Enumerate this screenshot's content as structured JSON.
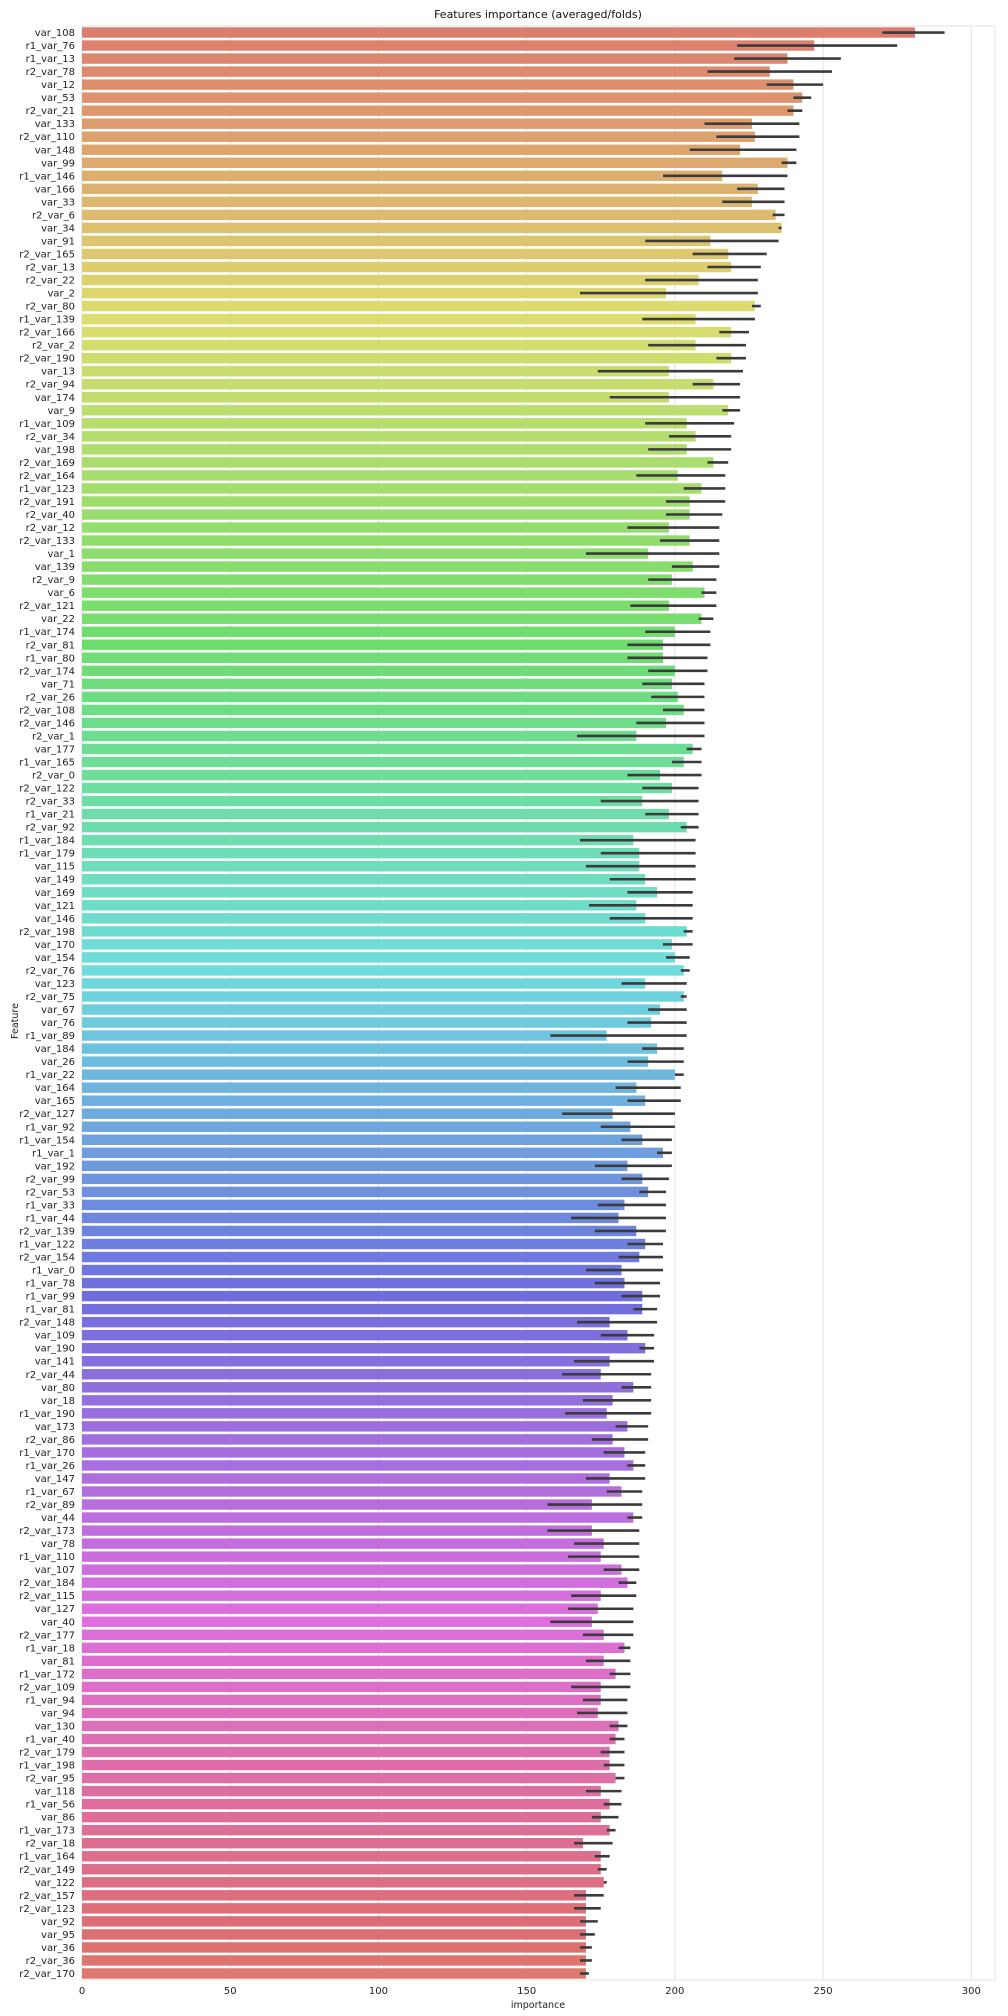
{
  "chart_data": {
    "type": "bar",
    "orientation": "horizontal",
    "title": "Features importance (averaged/folds)",
    "xlabel": "importance",
    "ylabel": "Feature",
    "xlim": [
      0,
      308
    ],
    "xticks": [
      0,
      50,
      100,
      150,
      200,
      250,
      300
    ],
    "grid": "vertical",
    "legend": "none",
    "categories": [
      "var_108",
      "r1_var_76",
      "r1_var_13",
      "r2_var_78",
      "var_12",
      "var_53",
      "r2_var_21",
      "var_133",
      "r2_var_110",
      "var_148",
      "var_99",
      "r1_var_146",
      "var_166",
      "var_33",
      "r2_var_6",
      "var_34",
      "var_91",
      "r2_var_165",
      "r2_var_13",
      "r2_var_22",
      "var_2",
      "r2_var_80",
      "r1_var_139",
      "r2_var_166",
      "r2_var_2",
      "r2_var_190",
      "var_13",
      "r2_var_94",
      "var_174",
      "var_9",
      "r1_var_109",
      "r2_var_34",
      "var_198",
      "r2_var_169",
      "r2_var_164",
      "r1_var_123",
      "r2_var_191",
      "r2_var_40",
      "r2_var_12",
      "r2_var_133",
      "var_1",
      "var_139",
      "r2_var_9",
      "var_6",
      "r2_var_121",
      "var_22",
      "r1_var_174",
      "r2_var_81",
      "r1_var_80",
      "r2_var_174",
      "var_71",
      "r2_var_26",
      "r2_var_108",
      "r2_var_146",
      "r2_var_1",
      "var_177",
      "r1_var_165",
      "r2_var_0",
      "r2_var_122",
      "r2_var_33",
      "r1_var_21",
      "r2_var_92",
      "r1_var_184",
      "r1_var_179",
      "var_115",
      "var_149",
      "var_169",
      "var_121",
      "var_146",
      "r2_var_198",
      "var_170",
      "var_154",
      "r2_var_76",
      "var_123",
      "r2_var_75",
      "var_67",
      "var_76",
      "r1_var_89",
      "var_184",
      "var_26",
      "r1_var_22",
      "var_164",
      "var_165",
      "r2_var_127",
      "r1_var_92",
      "r1_var_154",
      "r1_var_1",
      "var_192",
      "r2_var_99",
      "r2_var_53",
      "r1_var_33",
      "r1_var_44",
      "r2_var_139",
      "r1_var_122",
      "r2_var_154",
      "r1_var_0",
      "r1_var_78",
      "r1_var_99",
      "r1_var_81",
      "r2_var_148",
      "var_109",
      "var_190",
      "var_141",
      "r2_var_44",
      "var_80",
      "var_18",
      "r1_var_190",
      "var_173",
      "r2_var_86",
      "r1_var_170",
      "r1_var_26",
      "var_147",
      "r1_var_67",
      "r2_var_89",
      "var_44",
      "r2_var_173",
      "var_78",
      "r1_var_110",
      "var_107",
      "r2_var_184",
      "r2_var_115",
      "var_127",
      "var_40",
      "r2_var_177",
      "r1_var_18",
      "var_81",
      "r1_var_172",
      "r2_var_109",
      "r1_var_94",
      "var_94",
      "var_130",
      "r1_var_40",
      "r2_var_179",
      "r1_var_198",
      "r2_var_95",
      "var_118",
      "r1_var_56",
      "var_86",
      "r1_var_173",
      "r2_var_18",
      "r1_var_164",
      "r2_var_149",
      "var_122",
      "r2_var_157",
      "r2_var_123",
      "var_92",
      "var_95",
      "var_36",
      "r2_var_36",
      "r2_var_170"
    ],
    "values": [
      281,
      247,
      238,
      232,
      240,
      243,
      240,
      226,
      227,
      222,
      238,
      216,
      228,
      226,
      234,
      236,
      212,
      218,
      219,
      208,
      197,
      227,
      207,
      219,
      207,
      219,
      198,
      213,
      198,
      218,
      204,
      207,
      204,
      213,
      201,
      209,
      205,
      205,
      198,
      205,
      191,
      206,
      199,
      210,
      198,
      209,
      200,
      196,
      196,
      200,
      199,
      201,
      203,
      197,
      187,
      206,
      203,
      195,
      199,
      189,
      198,
      204,
      186,
      188,
      188,
      190,
      194,
      187,
      190,
      204,
      199,
      200,
      203,
      190,
      203,
      195,
      192,
      177,
      194,
      191,
      200,
      187,
      190,
      179,
      185,
      189,
      196,
      184,
      189,
      191,
      183,
      181,
      187,
      190,
      188,
      182,
      183,
      189,
      189,
      178,
      184,
      190,
      178,
      175,
      186,
      179,
      177,
      184,
      179,
      183,
      186,
      178,
      182,
      172,
      186,
      172,
      176,
      175,
      182,
      184,
      175,
      174,
      172,
      176,
      183,
      176,
      180,
      175,
      175,
      174,
      181,
      180,
      178,
      178,
      180,
      175,
      178,
      175,
      178,
      169,
      175,
      175,
      176,
      170,
      170,
      170,
      170,
      170,
      170,
      170
    ],
    "error_low": [
      270,
      221,
      220,
      211,
      231,
      240,
      238,
      210,
      214,
      205,
      236,
      196,
      221,
      216,
      233,
      235,
      190,
      206,
      211,
      190,
      168,
      226,
      189,
      215,
      191,
      214,
      174,
      206,
      178,
      216,
      190,
      198,
      191,
      211,
      187,
      203,
      197,
      197,
      184,
      195,
      170,
      199,
      191,
      209,
      185,
      208,
      190,
      184,
      184,
      191,
      189,
      192,
      196,
      187,
      167,
      204,
      199,
      184,
      189,
      175,
      190,
      202,
      168,
      175,
      170,
      178,
      184,
      171,
      178,
      203,
      196,
      197,
      202,
      182,
      202,
      191,
      184,
      158,
      189,
      184,
      200,
      180,
      184,
      162,
      175,
      182,
      194,
      173,
      182,
      188,
      174,
      165,
      173,
      184,
      181,
      170,
      173,
      182,
      186,
      167,
      175,
      188,
      166,
      162,
      182,
      169,
      163,
      180,
      172,
      176,
      184,
      170,
      177,
      157,
      184,
      157,
      166,
      164,
      176,
      181,
      165,
      164,
      158,
      169,
      181,
      170,
      178,
      165,
      169,
      167,
      178,
      178,
      175,
      176,
      180,
      170,
      176,
      172,
      177,
      166,
      173,
      174,
      176,
      166,
      166,
      168,
      168,
      168,
      168,
      168
    ],
    "error_high": [
      291,
      275,
      256,
      253,
      250,
      246,
      243,
      242,
      242,
      241,
      241,
      238,
      237,
      237,
      237,
      236,
      235,
      231,
      229,
      228,
      228,
      229,
      227,
      225,
      224,
      224,
      223,
      222,
      222,
      222,
      220,
      219,
      219,
      218,
      217,
      217,
      217,
      216,
      215,
      215,
      215,
      215,
      214,
      214,
      214,
      213,
      212,
      212,
      211,
      211,
      210,
      210,
      210,
      210,
      210,
      209,
      209,
      209,
      208,
      208,
      208,
      208,
      207,
      207,
      207,
      207,
      206,
      206,
      206,
      206,
      206,
      205,
      205,
      204,
      204,
      204,
      204,
      204,
      203,
      203,
      203,
      202,
      202,
      200,
      200,
      199,
      199,
      199,
      198,
      197,
      197,
      197,
      197,
      196,
      196,
      196,
      195,
      195,
      194,
      194,
      193,
      193,
      193,
      192,
      192,
      192,
      192,
      191,
      191,
      190,
      190,
      190,
      189,
      189,
      189,
      188,
      188,
      188,
      188,
      187,
      187,
      186,
      186,
      186,
      185,
      185,
      185,
      185,
      184,
      184,
      184,
      183,
      183,
      183,
      183,
      182,
      182,
      181,
      180,
      179,
      178,
      177,
      177,
      176,
      175,
      174,
      173,
      172,
      172,
      171
    ]
  }
}
